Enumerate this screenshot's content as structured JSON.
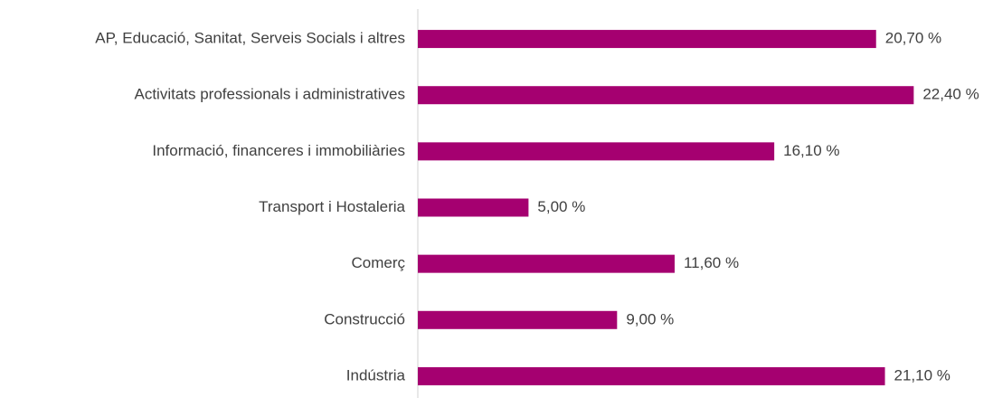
{
  "chart_data": {
    "type": "bar",
    "orientation": "horizontal",
    "categories": [
      "AP, Educació, Sanitat, Serveis Socials i altres",
      "Activitats professionals i administratives",
      "Informació, financeres i immobiliàries",
      "Transport i Hostaleria",
      "Comerç",
      "Construcció",
      "Indústria"
    ],
    "values": [
      20.7,
      22.4,
      16.1,
      5.0,
      11.6,
      9.0,
      21.1
    ],
    "value_labels": [
      "20,70 %",
      "22,40 %",
      "16,10 %",
      "5,00 %",
      "11,60 %",
      "9,00 %",
      "21,10 %"
    ],
    "color": "#a50070",
    "xlim": [
      0,
      25
    ]
  }
}
